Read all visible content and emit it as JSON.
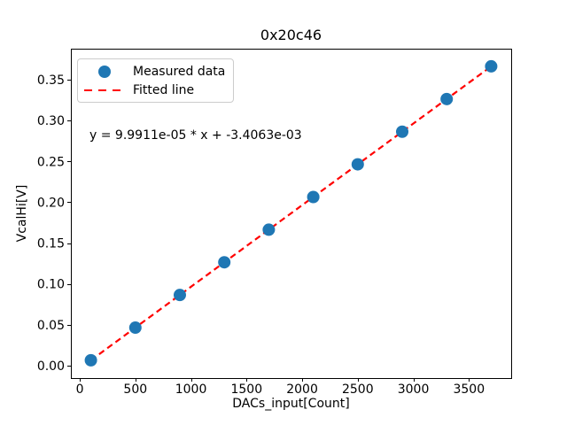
{
  "chart_data": {
    "type": "scatter",
    "title": "0x20c46",
    "xlabel": "DACs_input[Count]",
    "ylabel": "VcalHi[V]",
    "annotation": "y = 9.9911e-05 * x + -3.4063e-03",
    "grid": false,
    "legend_position": "upper-left",
    "xlim": [
      -80,
      3880
    ],
    "ylim": [
      -0.0152,
      0.3879
    ],
    "xticks": {
      "values": [
        0,
        500,
        1000,
        1500,
        2000,
        2500,
        3000,
        3500
      ],
      "labels": [
        "0",
        "500",
        "1000",
        "1500",
        "2000",
        "2500",
        "3000",
        "3500"
      ]
    },
    "yticks": {
      "values": [
        0.0,
        0.05,
        0.1,
        0.15,
        0.2,
        0.25,
        0.3,
        0.35
      ],
      "labels": [
        "0.00",
        "0.05",
        "0.10",
        "0.15",
        "0.20",
        "0.25",
        "0.30",
        "0.35"
      ]
    },
    "series": [
      {
        "name": "Measured data",
        "kind": "scatter",
        "marker": "circle",
        "color": "#1f77b4",
        "x": [
          100,
          500,
          900,
          1300,
          1700,
          2100,
          2500,
          2900,
          3300,
          3700
        ],
        "y": [
          0.0066,
          0.0465,
          0.0865,
          0.1265,
          0.1664,
          0.2064,
          0.2464,
          0.2863,
          0.3263,
          0.3663
        ]
      },
      {
        "name": "Fitted line",
        "kind": "line",
        "style": "dashed",
        "color": "#ff0000",
        "slope": 9.9911e-05,
        "intercept": -0.0034063,
        "x_start": 100,
        "x_end": 3700
      }
    ]
  },
  "colors": {
    "marker": "#1f77b4",
    "fit_line": "#ff0000",
    "spine": "#000000",
    "legend_border": "#cccccc",
    "background": "#ffffff"
  }
}
